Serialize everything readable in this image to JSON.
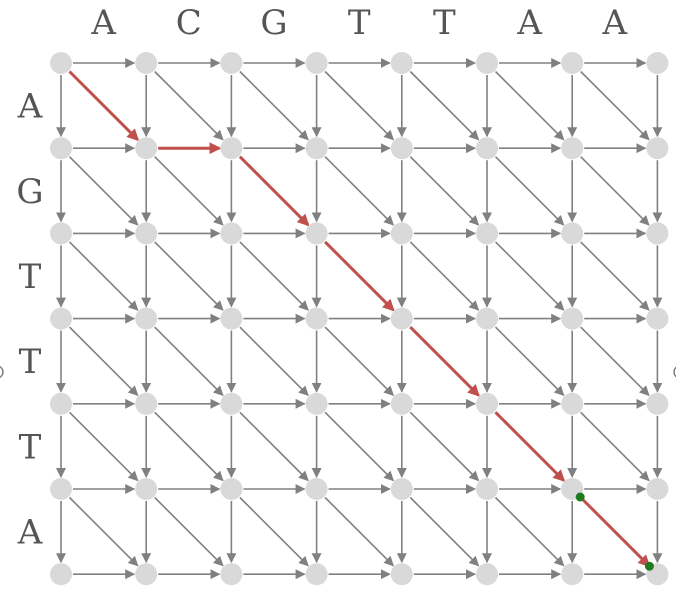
{
  "top_labels": [
    "A",
    "C",
    "G",
    "T",
    "T",
    "A",
    "A"
  ],
  "left_labels": [
    "A",
    "G",
    "T",
    "T",
    "T",
    "A"
  ],
  "grid": {
    "cols": 8,
    "rows": 7
  },
  "alignment_path": [
    [
      0,
      0
    ],
    [
      1,
      1
    ],
    [
      2,
      1
    ],
    [
      3,
      2
    ],
    [
      4,
      3
    ],
    [
      5,
      4
    ],
    [
      6,
      5
    ],
    [
      7,
      6
    ]
  ],
  "highlight_points": [
    [
      6,
      5
    ],
    [
      7,
      6
    ]
  ],
  "colors": {
    "node": "#d9d9d9",
    "edge": "#808080",
    "path": "#c0504d",
    "highlight": "#1e7b1e",
    "label": "#555555"
  }
}
